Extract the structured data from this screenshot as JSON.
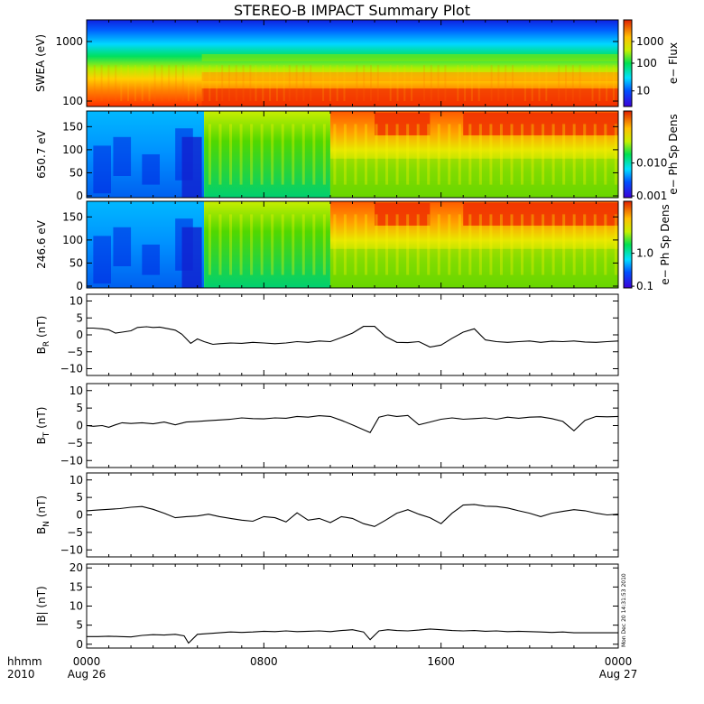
{
  "title": "STEREO-B IMPACT Summary Plot",
  "timestamp": "Mon Dec 20 14:31:53 2010",
  "x_axis": {
    "header": [
      "hhmm",
      "2010"
    ],
    "ticks": [
      {
        "label": "0000",
        "date": "Aug 26"
      },
      {
        "label": "0800",
        "date": ""
      },
      {
        "label": "1600",
        "date": ""
      },
      {
        "label": "0000",
        "date": "Aug 27"
      }
    ]
  },
  "chart_data": [
    {
      "type": "heatmap",
      "name": "SWEA",
      "ylabel": "SWEA (eV)",
      "ytick_labels": [
        "1000",
        "100"
      ],
      "ylog": true,
      "colorbar_label": "e− Flux",
      "colorbar_ticks": [
        "1000",
        "100",
        "10"
      ]
    },
    {
      "type": "heatmap",
      "name": "650.7 eV",
      "ylabel": "650.7 eV",
      "ylim": [
        0,
        180
      ],
      "ytick_labels": [
        "150",
        "100",
        "50",
        "0"
      ],
      "colorbar_label": "e− Ph Sp Dens",
      "colorbar_ticks": [
        "0.010",
        "0.001"
      ]
    },
    {
      "type": "heatmap",
      "name": "246.6 eV",
      "ylabel": "246.6 eV",
      "ylim": [
        0,
        180
      ],
      "ytick_labels": [
        "150",
        "100",
        "50",
        "0"
      ],
      "colorbar_label": "e− Ph Sp Dens",
      "colorbar_ticks": [
        "1.0",
        "0.1"
      ]
    },
    {
      "type": "line",
      "name": "BR",
      "ylabel": {
        "base": "B",
        "sub": "R",
        "unit": " (nT)"
      },
      "ylim": [
        -12,
        12
      ],
      "ytick_labels": [
        "10",
        "5",
        "0",
        "−5",
        "−10"
      ],
      "x": [
        0.0,
        0.3,
        0.7,
        1.0,
        1.3,
        1.6,
        2.0,
        2.3,
        2.7,
        3.0,
        3.3,
        3.7,
        4.0,
        4.3,
        4.7,
        5.0,
        5.3,
        5.7,
        6.0,
        6.5,
        7.0,
        7.5,
        8.0,
        8.5,
        9.0,
        9.5,
        10.0,
        10.5,
        11.0,
        11.5,
        12.0,
        12.5,
        13.0,
        13.5,
        14.0,
        14.5,
        15.0,
        15.5,
        16.0,
        16.5,
        17.0,
        17.5,
        18.0,
        18.5,
        19.0,
        19.5,
        20.0,
        20.5,
        21.0,
        21.5,
        22.0,
        22.5,
        23.0,
        23.5,
        24.0
      ],
      "y": [
        2.0,
        2.0,
        1.8,
        1.5,
        0.5,
        0.8,
        1.2,
        2.2,
        2.4,
        2.2,
        2.3,
        1.8,
        1.4,
        0.2,
        -2.5,
        -1.2,
        -2.0,
        -2.8,
        -2.6,
        -2.4,
        -2.5,
        -2.2,
        -2.4,
        -2.6,
        -2.4,
        -2.0,
        -2.2,
        -1.8,
        -2.0,
        -0.8,
        0.5,
        2.5,
        2.5,
        -0.5,
        -2.2,
        -2.3,
        -2.0,
        -3.6,
        -3.0,
        -1.0,
        0.8,
        1.8,
        -1.5,
        -2.0,
        -2.2,
        -2.0,
        -1.8,
        -2.2,
        -1.9,
        -2.0,
        -1.8,
        -2.1,
        -2.2,
        -2.0,
        -1.8
      ]
    },
    {
      "type": "line",
      "name": "BT",
      "ylabel": {
        "base": "B",
        "sub": "T",
        "unit": " (nT)"
      },
      "ylim": [
        -12,
        12
      ],
      "ytick_labels": [
        "10",
        "5",
        "0",
        "−5",
        "−10"
      ],
      "x": [
        0.0,
        0.3,
        0.7,
        1.0,
        1.3,
        1.6,
        2.0,
        2.5,
        3.0,
        3.5,
        4.0,
        4.5,
        5.0,
        5.5,
        6.0,
        6.5,
        7.0,
        7.5,
        8.0,
        8.5,
        9.0,
        9.5,
        10.0,
        10.5,
        11.0,
        11.5,
        12.0,
        12.5,
        12.8,
        13.2,
        13.6,
        14.0,
        14.5,
        15.0,
        15.5,
        16.0,
        16.5,
        17.0,
        17.5,
        18.0,
        18.5,
        19.0,
        19.5,
        20.0,
        20.5,
        21.0,
        21.5,
        22.0,
        22.5,
        23.0,
        23.5,
        24.0
      ],
      "y": [
        0.0,
        -0.2,
        0.0,
        -0.5,
        0.2,
        0.8,
        0.6,
        0.8,
        0.5,
        1.0,
        0.2,
        1.0,
        1.2,
        1.4,
        1.6,
        1.8,
        2.2,
        2.0,
        1.9,
        2.2,
        2.1,
        2.6,
        2.4,
        2.8,
        2.6,
        1.5,
        0.2,
        -1.2,
        -2.0,
        2.4,
        3.0,
        2.6,
        2.9,
        0.2,
        1.0,
        1.8,
        2.2,
        1.8,
        2.0,
        2.2,
        1.8,
        2.4,
        2.1,
        2.4,
        2.5,
        2.0,
        1.2,
        -1.5,
        1.5,
        2.6,
        2.5,
        2.6
      ]
    },
    {
      "type": "line",
      "name": "BN",
      "ylabel": {
        "base": "B",
        "sub": "N",
        "unit": " (nT)"
      },
      "ylim": [
        -12,
        12
      ],
      "ytick_labels": [
        "10",
        "5",
        "0",
        "−5",
        "−10"
      ],
      "x": [
        0.0,
        0.5,
        1.0,
        1.5,
        2.0,
        2.5,
        3.0,
        3.5,
        4.0,
        4.5,
        5.0,
        5.5,
        6.0,
        6.5,
        7.0,
        7.5,
        8.0,
        8.5,
        9.0,
        9.5,
        10.0,
        10.5,
        11.0,
        11.5,
        12.0,
        12.5,
        13.0,
        13.5,
        14.0,
        14.5,
        15.0,
        15.5,
        16.0,
        16.5,
        17.0,
        17.5,
        18.0,
        18.5,
        19.0,
        19.5,
        20.0,
        20.5,
        21.0,
        21.5,
        22.0,
        22.5,
        23.0,
        23.5,
        24.0
      ],
      "y": [
        1.2,
        1.4,
        1.6,
        1.8,
        2.2,
        2.4,
        1.6,
        0.5,
        -0.8,
        -0.5,
        -0.3,
        0.2,
        -0.5,
        -1.0,
        -1.5,
        -1.8,
        -0.5,
        -0.8,
        -2.0,
        0.6,
        -1.5,
        -1.0,
        -2.2,
        -0.5,
        -1.0,
        -2.5,
        -3.3,
        -1.5,
        0.5,
        1.5,
        0.2,
        -0.8,
        -2.5,
        0.5,
        2.8,
        3.0,
        2.5,
        2.4,
        2.0,
        1.2,
        0.5,
        -0.5,
        0.5,
        1.0,
        1.5,
        1.2,
        0.5,
        0.0,
        0.2
      ]
    },
    {
      "type": "line",
      "name": "|B|",
      "ylabel": {
        "base": "|B|",
        "sub": "",
        "unit": " (nT)"
      },
      "ylim": [
        -1,
        21
      ],
      "ytick_labels": [
        "20",
        "15",
        "10",
        "5",
        "0"
      ],
      "x": [
        0.0,
        0.5,
        1.0,
        1.5,
        2.0,
        2.5,
        3.0,
        3.5,
        4.0,
        4.4,
        4.6,
        5.0,
        5.5,
        6.0,
        6.5,
        7.0,
        7.5,
        8.0,
        8.5,
        9.0,
        9.5,
        10.0,
        10.5,
        11.0,
        11.5,
        12.0,
        12.5,
        12.8,
        13.2,
        13.6,
        14.0,
        14.5,
        15.0,
        15.5,
        16.0,
        16.5,
        17.0,
        17.5,
        18.0,
        18.5,
        19.0,
        19.5,
        20.0,
        20.5,
        21.0,
        21.5,
        22.0,
        22.5,
        23.0,
        23.5,
        24.0
      ],
      "y": [
        2.0,
        2.0,
        2.1,
        2.0,
        1.9,
        2.3,
        2.5,
        2.4,
        2.6,
        2.2,
        0.3,
        2.6,
        2.8,
        3.0,
        3.2,
        3.1,
        3.2,
        3.4,
        3.3,
        3.5,
        3.3,
        3.4,
        3.5,
        3.3,
        3.6,
        3.8,
        3.2,
        1.2,
        3.5,
        3.8,
        3.6,
        3.5,
        3.7,
        4.0,
        3.8,
        3.6,
        3.5,
        3.6,
        3.4,
        3.5,
        3.3,
        3.4,
        3.3,
        3.2,
        3.1,
        3.2,
        3.0,
        3.0,
        3.0,
        3.0,
        3.0
      ]
    }
  ]
}
